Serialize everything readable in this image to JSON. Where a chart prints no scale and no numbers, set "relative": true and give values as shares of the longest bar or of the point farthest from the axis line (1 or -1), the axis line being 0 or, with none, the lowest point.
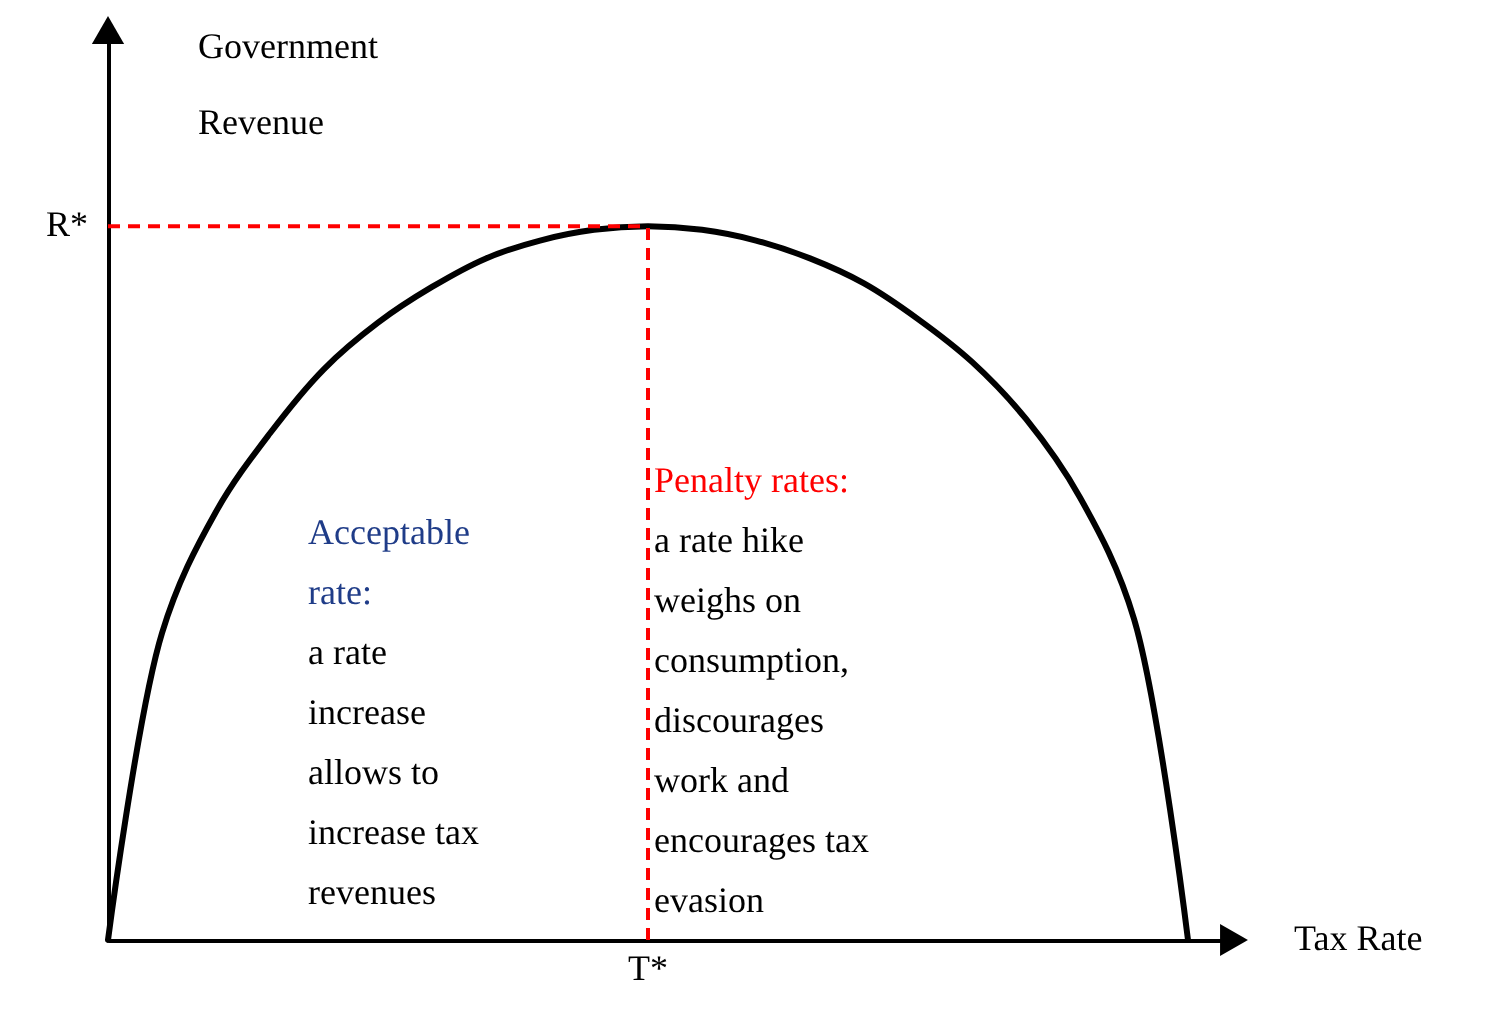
{
  "chart_data": {
    "type": "line",
    "relative": true,
    "xlabel": "Tax Rate",
    "ylabel": "Government Revenue",
    "categories": [
      null,
      null,
      null,
      null,
      null,
      null,
      null,
      null,
      null,
      null,
      null,
      null,
      null,
      null,
      null,
      null,
      null,
      null,
      null,
      null,
      null
    ],
    "series": [
      {
        "color": "#000000",
        "values": [
          0,
          0.43,
          0.6,
          0.71,
          0.8,
          0.865,
          0.915,
          0.955,
          0.98,
          0.995,
          1,
          0.995,
          0.98,
          0.955,
          0.92,
          0.87,
          0.81,
          0.73,
          0.62,
          0.45,
          0
        ]
      }
    ],
    "line_style": "solid",
    "grid": false,
    "marker": "none",
    "ref_lines": [
      {
        "axis": "y",
        "value": 1,
        "label": "R*",
        "color": "#ff0000",
        "line_style": "dashed"
      }
    ],
    "annotations": [
      "Acceptable rate: a rate increase allows to increase tax revenues",
      "Penalty rates: a rate hike weighs on consumption, discourages work and encourages tax evasion",
      "T*"
    ]
  }
}
